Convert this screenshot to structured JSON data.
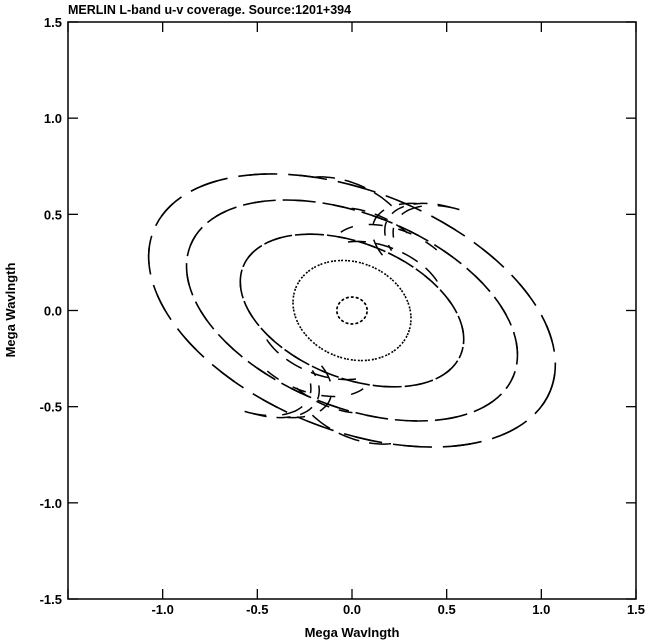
{
  "chart_data": {
    "type": "scatter",
    "title": "MERLIN L-band u-v coverage.  Source:1201+394",
    "xlabel": "Mega Wavlngth",
    "ylabel": "Mega Wavlngth",
    "xlim": [
      -1.5,
      1.5
    ],
    "ylim": [
      -1.5,
      1.5
    ],
    "xticks": [
      {
        "value": -1.0,
        "label": "-1.0"
      },
      {
        "value": -0.5,
        "label": "-0.5"
      },
      {
        "value": 0.0,
        "label": "0.0"
      },
      {
        "value": 0.5,
        "label": "0.5"
      },
      {
        "value": 1.0,
        "label": "1.0"
      },
      {
        "value": 1.5,
        "label": "1.5"
      }
    ],
    "yticks": [
      {
        "value": -1.5,
        "label": "-1.5"
      },
      {
        "value": -1.0,
        "label": "-1.0"
      },
      {
        "value": -0.5,
        "label": "-0.5"
      },
      {
        "value": 0.0,
        "label": "0.0"
      },
      {
        "value": 0.5,
        "label": "0.5"
      },
      {
        "value": 1.0,
        "label": "1.0"
      }
    ],
    "corner_labels": [
      {
        "position": "top-left",
        "label": "1.5"
      }
    ],
    "grid": false,
    "legend": "none",
    "marker_color": "#000000",
    "series": [
      {
        "tracks": [
          {
            "u0": 0.92,
            "v0": 0.6,
            "tilt_deg": -22,
            "start_deg": 100,
            "end_deg": 220
          },
          {
            "u0": 0.8,
            "v0": 0.6,
            "tilt_deg": -22,
            "start_deg": 120,
            "end_deg": 240
          },
          {
            "u0": -0.07,
            "v0": 0.85,
            "tilt_deg": -22,
            "start_deg": 55,
            "end_deg": 135
          },
          {
            "u0": 0.4,
            "v0": 0.4,
            "tilt_deg": -22,
            "start_deg": 60,
            "end_deg": 160
          },
          {
            "u0": 0.28,
            "v0": 0.24,
            "tilt_deg": -22,
            "start_deg": 40,
            "end_deg": 140
          },
          {
            "u0": 1.0,
            "v0": 0.58,
            "tilt_deg": -22,
            "start_deg": 100,
            "end_deg": 200
          },
          {
            "u0": 0.12,
            "v0": 0.56,
            "tilt_deg": -22,
            "start_deg": 60,
            "end_deg": 120
          }
        ],
        "ellipses": [
          {
            "cx": 0,
            "cy": 0,
            "a": 1.13,
            "b": 0.62,
            "tilt_deg": -22,
            "dash": "28 22"
          },
          {
            "cx": 0,
            "cy": 0,
            "a": 0.92,
            "b": 0.5,
            "tilt_deg": -22,
            "dash": "22 18"
          },
          {
            "cx": 0,
            "cy": 0,
            "a": 0.62,
            "b": 0.35,
            "tilt_deg": -22,
            "dash": "18 14"
          },
          {
            "cx": 0,
            "cy": 0,
            "a": 0.32,
            "b": 0.25,
            "tilt_deg": -22,
            "dash": "2 5"
          },
          {
            "cx": 0,
            "cy": 0,
            "a": 0.08,
            "b": 0.07,
            "tilt_deg": 0,
            "dash": "2 3"
          }
        ]
      }
    ]
  }
}
